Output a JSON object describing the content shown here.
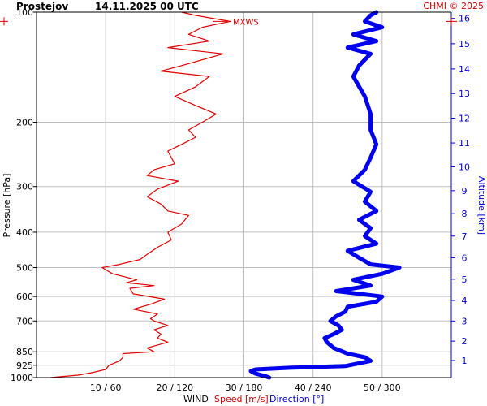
{
  "header": {
    "station": "Prostejov",
    "datetime": "14.11.2025 00 UTC",
    "copyright": "CHMI © 2025"
  },
  "colors": {
    "speed": "#e00000",
    "direction": "#0000ee",
    "grid": "#c0c0c0",
    "altitude_axis": "#0000cc"
  },
  "chart_data": {
    "type": "line",
    "title": "Prostejov   14.11.2025 00 UTC",
    "ylabel_left": "Pressure [hPa]",
    "ylabel_right": "Altitude [km]",
    "xlabel": {
      "wind": "WIND",
      "speed": "Speed [m/s]",
      "direction": "Direction [°]"
    },
    "y_scale": "log",
    "ylim": [
      1000,
      100
    ],
    "pressure_ticks": [
      "100",
      "200",
      "300",
      "400",
      "500",
      "600",
      "700",
      "850",
      "925",
      "1000"
    ],
    "altitude_ticks": [
      "1",
      "2",
      "3",
      "4",
      "5",
      "6",
      "7",
      "8",
      "9",
      "10",
      "11",
      "12",
      "13",
      "14",
      "15",
      "16"
    ],
    "altitude_tick_pressures": [
      898,
      795,
      700,
      615,
      538,
      470,
      410,
      356,
      308,
      265,
      228,
      195,
      167,
      143,
      122,
      104
    ],
    "x_ticks": [
      "10 / 60",
      "20 / 120",
      "30 / 180",
      "40 / 240",
      "50 / 300"
    ],
    "speed_xlim": [
      0,
      60
    ],
    "direction_xlim": [
      0,
      360
    ],
    "mxws_label": "MXWS",
    "mxws_pressure": 106,
    "series": [
      {
        "name": "Speed [m/s]",
        "pressure": [
          1000,
          985,
          970,
          950,
          925,
          900,
          880,
          860,
          850,
          830,
          800,
          780,
          760,
          740,
          720,
          700,
          690,
          670,
          650,
          630,
          610,
          590,
          570,
          560,
          550,
          540,
          520,
          500,
          490,
          475,
          460,
          440,
          420,
          400,
          380,
          360,
          350,
          335,
          320,
          305,
          290,
          280,
          270,
          260,
          250,
          240,
          230,
          220,
          210,
          200,
          190,
          180,
          170,
          160,
          150,
          145,
          140,
          130,
          125,
          120,
          115,
          110,
          106,
          102,
          100
        ],
        "values": [
          2,
          6,
          8,
          10,
          10.5,
          12,
          12.5,
          12.5,
          17,
          16,
          19,
          17.5,
          18,
          17,
          19,
          17,
          16.5,
          17.5,
          14,
          16.5,
          18.5,
          14,
          13.5,
          17,
          13,
          14.5,
          11,
          9.5,
          12,
          15,
          16,
          17.5,
          19.5,
          19,
          21,
          22,
          19,
          18,
          16,
          17.5,
          20.5,
          16,
          17,
          20,
          19.5,
          19,
          21,
          23,
          22,
          24,
          26,
          23,
          20,
          23,
          25,
          18,
          21,
          27,
          19,
          25,
          22,
          24,
          28,
          23,
          21
        ]
      },
      {
        "name": "Direction [°]",
        "pressure": [
          1000,
          990,
          975,
          960,
          950,
          940,
          930,
          900,
          880,
          860,
          830,
          800,
          780,
          760,
          740,
          720,
          700,
          680,
          660,
          640,
          620,
          600,
          580,
          560,
          540,
          520,
          500,
          490,
          470,
          450,
          430,
          410,
          390,
          370,
          350,
          330,
          310,
          290,
          270,
          250,
          230,
          210,
          190,
          170,
          150,
          140,
          130,
          125,
          120,
          115,
          110,
          106,
          102,
          100
        ],
        "values": [
          202,
          198,
          190,
          186,
          190,
          220,
          268,
          290,
          285,
          270,
          258,
          252,
          250,
          258,
          265,
          262,
          255,
          260,
          268,
          270,
          295,
          300,
          260,
          290,
          275,
          300,
          315,
          290,
          280,
          270,
          295,
          285,
          290,
          280,
          295,
          285,
          290,
          275,
          285,
          290,
          295,
          290,
          290,
          285,
          275,
          280,
          290,
          270,
          295,
          275,
          300,
          285,
          290,
          295
        ]
      }
    ]
  }
}
